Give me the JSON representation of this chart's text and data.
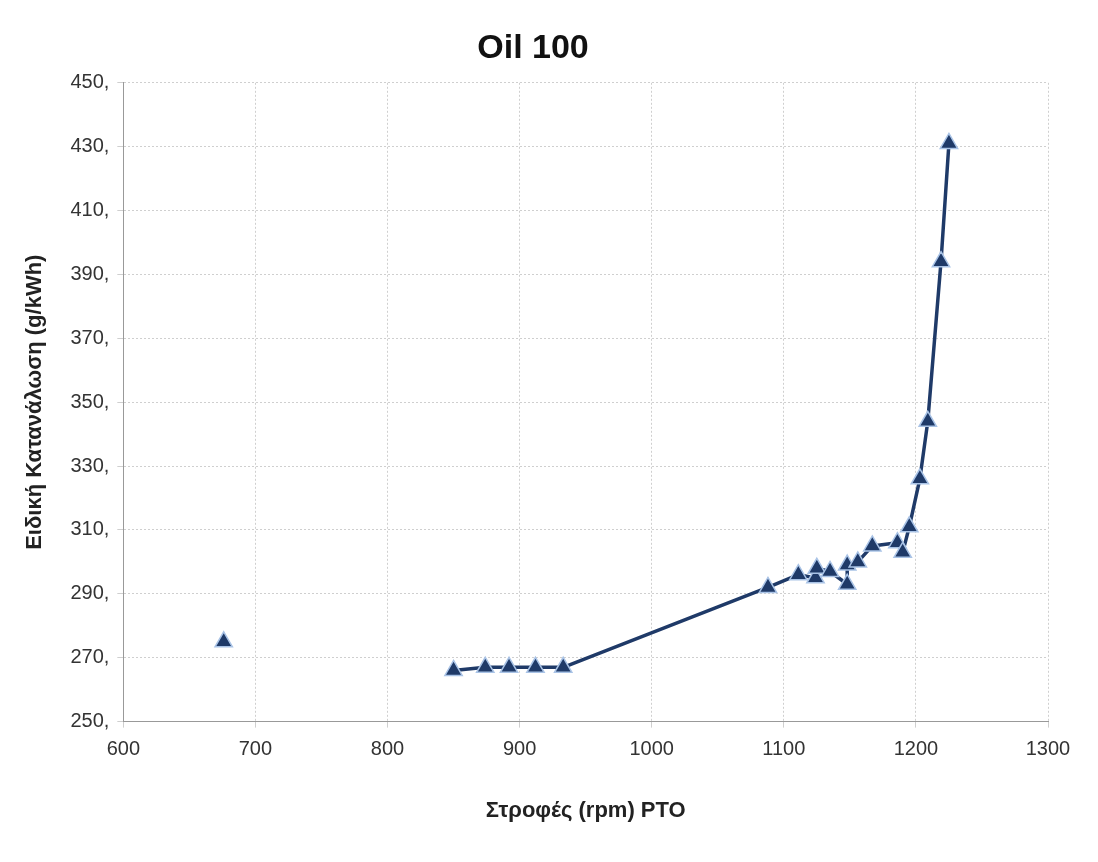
{
  "chart_data": {
    "type": "line",
    "title": "Oil 100",
    "xlabel": "Στροφές (rpm) PTO",
    "ylabel": "Ειδική Κατανάλωση (g/kWh)",
    "xlim": [
      600,
      1300
    ],
    "xticks": [
      600,
      700,
      800,
      900,
      1000,
      1100,
      1200,
      1300
    ],
    "ylim": [
      250,
      450
    ],
    "yticks": [
      {
        "value": 250,
        "label": "250,"
      },
      {
        "value": 270,
        "label": "270,"
      },
      {
        "value": 290,
        "label": "290,"
      },
      {
        "value": 310,
        "label": "310,"
      },
      {
        "value": 330,
        "label": "330,"
      },
      {
        "value": 350,
        "label": "350,"
      },
      {
        "value": 370,
        "label": "370,"
      },
      {
        "value": 390,
        "label": "390,"
      },
      {
        "value": 410,
        "label": "410,"
      },
      {
        "value": 430,
        "label": "430,"
      },
      {
        "value": 450,
        "label": "450,"
      }
    ],
    "grid": true,
    "legend": false,
    "marker": "triangle",
    "line_style": "solid",
    "series": [
      {
        "color": "#1f3a68",
        "x": [
          676,
          null,
          850,
          874,
          892,
          912,
          933,
          1088,
          1111,
          1124,
          1125,
          1135,
          1148,
          1148,
          1156,
          1167,
          1186,
          1190,
          1195,
          1203,
          1209,
          1219,
          1225
        ],
        "values": [
          275,
          null,
          266,
          267,
          267,
          267,
          267,
          292,
          296,
          295,
          298,
          297,
          293,
          299,
          300,
          305,
          306,
          303,
          311,
          326,
          344,
          394,
          431
        ]
      }
    ]
  }
}
